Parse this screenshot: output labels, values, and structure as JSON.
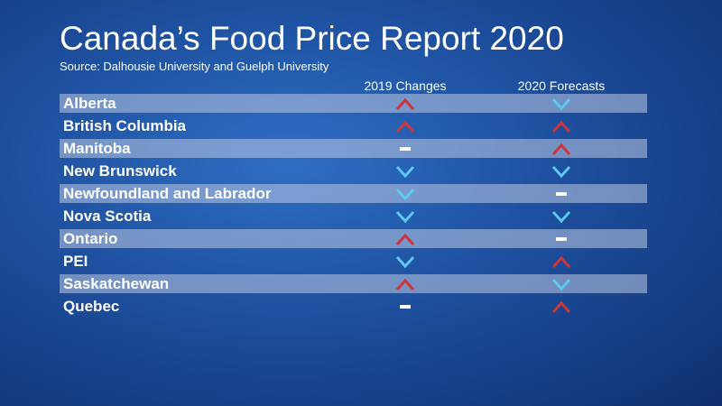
{
  "header": {
    "title": "Canada’s Food Price Report 2020",
    "source": "Source: Dalhousie University and Guelph University"
  },
  "table": {
    "columns": [
      "2019 Changes",
      "2020 Forecasts"
    ],
    "rows": [
      "Alberta",
      "British Columbia",
      "Manitoba",
      "New Brunswick",
      "Newfoundland and Labrador",
      "Nova Scotia",
      "Ontario",
      "PEI",
      "Saskatchewan",
      "Quebec"
    ]
  }
}
